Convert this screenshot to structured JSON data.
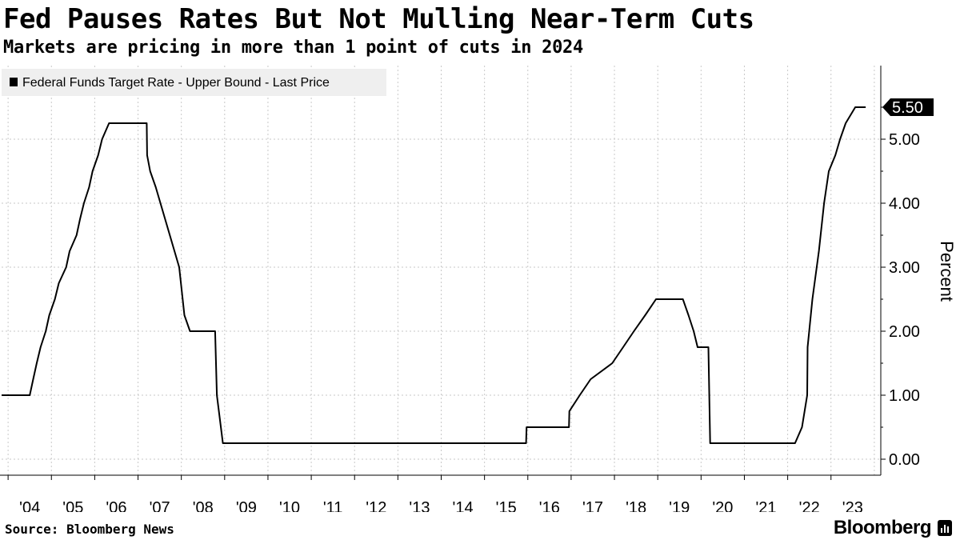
{
  "header": {
    "title": "Fed Pauses Rates But Not Mulling Near-Term Cuts",
    "subtitle": "Markets are pricing in more than 1 point of cuts in 2024"
  },
  "footer": {
    "source": "Source: Bloomberg News",
    "brand": "Bloomberg"
  },
  "chart_data": {
    "type": "line",
    "ylabel": "Percent",
    "ylim": [
      -0.25,
      6.15
    ],
    "xlim": [
      2003.85,
      2024.15
    ],
    "yticks": [
      {
        "value": 0,
        "label": "0.00"
      },
      {
        "value": 1,
        "label": "1.00"
      },
      {
        "value": 2,
        "label": "2.00"
      },
      {
        "value": 3,
        "label": "3.00"
      },
      {
        "value": 4,
        "label": "4.00"
      },
      {
        "value": 5,
        "label": "5.00"
      }
    ],
    "xticks": [
      {
        "value": 2004,
        "label": "'04"
      },
      {
        "value": 2005,
        "label": "'05"
      },
      {
        "value": 2006,
        "label": "'06"
      },
      {
        "value": 2007,
        "label": "'07"
      },
      {
        "value": 2008,
        "label": "'08"
      },
      {
        "value": 2009,
        "label": "'09"
      },
      {
        "value": 2010,
        "label": "'10"
      },
      {
        "value": 2011,
        "label": "'11"
      },
      {
        "value": 2012,
        "label": "'12"
      },
      {
        "value": 2013,
        "label": "'13"
      },
      {
        "value": 2014,
        "label": "'14"
      },
      {
        "value": 2015,
        "label": "'15"
      },
      {
        "value": 2016,
        "label": "'16"
      },
      {
        "value": 2017,
        "label": "'17"
      },
      {
        "value": 2018,
        "label": "'18"
      },
      {
        "value": 2019,
        "label": "'19"
      },
      {
        "value": 2020,
        "label": "'20"
      },
      {
        "value": 2021,
        "label": "'21"
      },
      {
        "value": 2022,
        "label": "'22"
      },
      {
        "value": 2023,
        "label": "'23"
      }
    ],
    "last_value_label": "5.50",
    "legend_position": "top-left",
    "grid": true,
    "series": [
      {
        "name": "Federal Funds Target Rate - Upper Bound - Last Price",
        "color": "#000000",
        "points": [
          [
            2003.85,
            1.0
          ],
          [
            2004.5,
            1.0
          ],
          [
            2004.58,
            1.25
          ],
          [
            2004.66,
            1.5
          ],
          [
            2004.75,
            1.75
          ],
          [
            2004.87,
            2.0
          ],
          [
            2004.95,
            2.25
          ],
          [
            2005.08,
            2.5
          ],
          [
            2005.17,
            2.75
          ],
          [
            2005.34,
            3.0
          ],
          [
            2005.42,
            3.25
          ],
          [
            2005.58,
            3.5
          ],
          [
            2005.66,
            3.75
          ],
          [
            2005.75,
            4.0
          ],
          [
            2005.87,
            4.25
          ],
          [
            2005.95,
            4.5
          ],
          [
            2006.08,
            4.75
          ],
          [
            2006.17,
            5.0
          ],
          [
            2006.33,
            5.25
          ],
          [
            2007.2,
            5.25
          ],
          [
            2007.21,
            4.75
          ],
          [
            2007.28,
            4.5
          ],
          [
            2007.41,
            4.25
          ],
          [
            2007.95,
            3.0
          ],
          [
            2008.07,
            2.25
          ],
          [
            2008.2,
            2.0
          ],
          [
            2008.78,
            2.0
          ],
          [
            2008.8,
            1.5
          ],
          [
            2008.82,
            1.0
          ],
          [
            2008.96,
            0.25
          ],
          [
            2015.96,
            0.25
          ],
          [
            2015.97,
            0.5
          ],
          [
            2016.95,
            0.5
          ],
          [
            2016.96,
            0.75
          ],
          [
            2017.2,
            1.0
          ],
          [
            2017.45,
            1.25
          ],
          [
            2017.95,
            1.5
          ],
          [
            2018.2,
            1.75
          ],
          [
            2018.45,
            2.0
          ],
          [
            2018.71,
            2.25
          ],
          [
            2018.96,
            2.5
          ],
          [
            2019.58,
            2.5
          ],
          [
            2019.71,
            2.25
          ],
          [
            2019.83,
            2.0
          ],
          [
            2019.92,
            1.75
          ],
          [
            2020.17,
            1.75
          ],
          [
            2020.21,
            0.25
          ],
          [
            2022.17,
            0.25
          ],
          [
            2022.33,
            0.5
          ],
          [
            2022.45,
            1.0
          ],
          [
            2022.46,
            1.75
          ],
          [
            2022.57,
            2.5
          ],
          [
            2022.72,
            3.25
          ],
          [
            2022.84,
            4.0
          ],
          [
            2022.95,
            4.5
          ],
          [
            2023.1,
            4.75
          ],
          [
            2023.21,
            5.0
          ],
          [
            2023.34,
            5.25
          ],
          [
            2023.56,
            5.5
          ],
          [
            2023.8,
            5.5
          ]
        ]
      }
    ]
  }
}
